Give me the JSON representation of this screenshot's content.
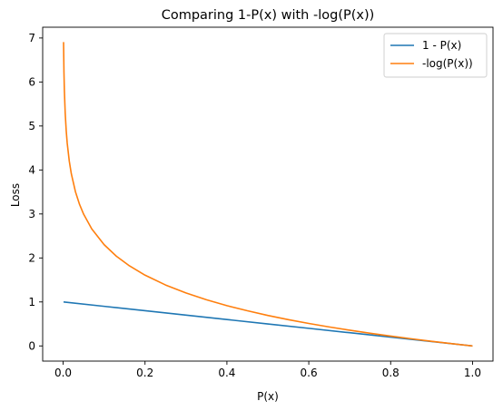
{
  "chart_data": {
    "type": "line",
    "title": "Comparing 1-P(x) with -log(P(x))",
    "xlabel": "P(x)",
    "ylabel": "Loss",
    "xlim": [
      -0.05,
      1.05
    ],
    "ylim": [
      -0.345,
      7.245
    ],
    "xticks": [
      "0.0",
      "0.2",
      "0.4",
      "0.6",
      "0.8",
      "1.0"
    ],
    "yticks": [
      "0",
      "1",
      "2",
      "3",
      "4",
      "5",
      "6",
      "7"
    ],
    "grid": false,
    "legend_position": "top-right",
    "series": [
      {
        "name": "1 - P(x)",
        "color": "#1f77b4",
        "x": [
          0.001,
          0.1,
          0.2,
          0.3,
          0.4,
          0.5,
          0.6,
          0.7,
          0.8,
          0.9,
          1.0
        ],
        "y": [
          0.999,
          0.9,
          0.8,
          0.7,
          0.6,
          0.5,
          0.4,
          0.3,
          0.2,
          0.1,
          0.0
        ]
      },
      {
        "name": "-log(P(x))",
        "color": "#ff7f0e",
        "x": [
          0.001,
          0.002,
          0.003,
          0.005,
          0.0075,
          0.01,
          0.015,
          0.02,
          0.03,
          0.04,
          0.05,
          0.07,
          0.1,
          0.13,
          0.16,
          0.2,
          0.25,
          0.3,
          0.35,
          0.4,
          0.45,
          0.5,
          0.55,
          0.6,
          0.65,
          0.7,
          0.75,
          0.8,
          0.85,
          0.9,
          0.95,
          1.0
        ],
        "y": [
          6.908,
          6.215,
          5.809,
          5.298,
          4.893,
          4.605,
          4.2,
          3.912,
          3.507,
          3.219,
          2.996,
          2.659,
          2.303,
          2.04,
          1.833,
          1.609,
          1.386,
          1.204,
          1.05,
          0.916,
          0.799,
          0.693,
          0.598,
          0.511,
          0.431,
          0.357,
          0.288,
          0.223,
          0.163,
          0.105,
          0.051,
          0.0
        ]
      }
    ]
  }
}
